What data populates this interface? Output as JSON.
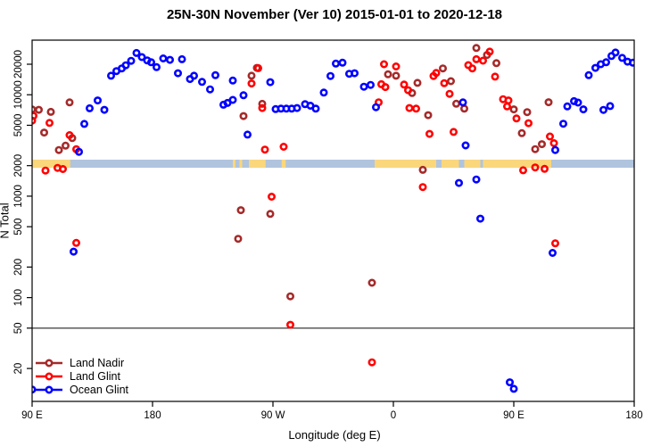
{
  "title": "25N-30N November (Ver 10)   2015-01-01 to 2020-12-18",
  "x_axis": {
    "label": "Longitude (deg E)",
    "ticks": [
      {
        "lon": 90,
        "label": "90 E"
      },
      {
        "lon": 180,
        "label": "180"
      },
      {
        "lon": 270,
        "label": "90 W"
      },
      {
        "lon": 360,
        "label": "0"
      },
      {
        "lon": 450,
        "label": "90 E"
      },
      {
        "lon": 540,
        "label": "180"
      }
    ],
    "domain": [
      90,
      540
    ]
  },
  "y_axis": {
    "label": "N Total",
    "ticks": [
      "20000",
      "10000",
      "5000",
      "2000",
      "1000",
      "500",
      "200",
      "100",
      "50",
      "20"
    ],
    "scale": "log",
    "range": [
      9,
      35000
    ]
  },
  "reference_line_n": 50,
  "legend": [
    {
      "label": "Land Nadir",
      "color": "#A52A2A"
    },
    {
      "label": "Land Glint",
      "color": "#FF0000"
    },
    {
      "label": "Ocean Glint",
      "color": "#0000FF"
    }
  ],
  "map_band": {
    "ocean_color": "#B0C4DE",
    "land_color": "#FBD77C",
    "n_range": [
      1905,
      2290
    ],
    "land_segments_lon": [
      [
        90,
        118.5
      ],
      [
        240,
        242
      ],
      [
        245,
        247
      ],
      [
        252,
        264.5
      ],
      [
        276.5,
        279.5
      ],
      [
        346,
        392
      ],
      [
        396,
        409
      ],
      [
        413,
        425
      ],
      [
        427,
        478
      ]
    ]
  },
  "chart_data": {
    "type": "scatter",
    "x_domain": [
      90,
      540
    ],
    "title": "25N-30N November (Ver 10)   2015-01-01 to 2020-12-18",
    "xlabel": "Longitude (deg E)",
    "ylabel": "N Total",
    "series": [
      {
        "name": "Land Nadir",
        "color": "#A52A2A",
        "points": [
          [
            90,
            7160
          ],
          [
            95,
            7100
          ],
          [
            104,
            6780
          ],
          [
            118,
            8400
          ],
          [
            99,
            4240
          ],
          [
            110,
            2850
          ],
          [
            115,
            3150
          ],
          [
            120,
            3740
          ],
          [
            248,
            6160
          ],
          [
            254,
            15400
          ],
          [
            258,
            18400
          ],
          [
            262,
            8130
          ],
          [
            246,
            728
          ],
          [
            268,
            669
          ],
          [
            244,
            380
          ],
          [
            283,
            103
          ],
          [
            344,
            140
          ],
          [
            356,
            15900
          ],
          [
            362,
            15400
          ],
          [
            374,
            10400
          ],
          [
            378,
            13100
          ],
          [
            386,
            6290
          ],
          [
            382,
            1820
          ],
          [
            397,
            18200
          ],
          [
            403,
            13600
          ],
          [
            407,
            8160
          ],
          [
            413,
            7290
          ],
          [
            422,
            28900
          ],
          [
            430,
            24700
          ],
          [
            437,
            20500
          ],
          [
            450,
            7180
          ],
          [
            460,
            6740
          ],
          [
            456,
            4180
          ],
          [
            476,
            8440
          ],
          [
            466,
            2910
          ],
          [
            471,
            3260
          ]
        ]
      },
      {
        "name": "Land Glint",
        "color": "#FF0000",
        "points": [
          [
            90,
            5560
          ],
          [
            91,
            6190
          ],
          [
            103,
            5280
          ],
          [
            118,
            4000
          ],
          [
            123,
            2900
          ],
          [
            100,
            1790
          ],
          [
            109,
            1900
          ],
          [
            113,
            1850
          ],
          [
            123,
            346
          ],
          [
            254,
            12900
          ],
          [
            259,
            18300
          ],
          [
            262,
            7400
          ],
          [
            264,
            2880
          ],
          [
            278,
            3070
          ],
          [
            269,
            988
          ],
          [
            283,
            54
          ],
          [
            344,
            23
          ],
          [
            349,
            8420
          ],
          [
            351,
            12700
          ],
          [
            353,
            20000
          ],
          [
            354,
            11900
          ],
          [
            362,
            19000
          ],
          [
            368,
            12600
          ],
          [
            371,
            11100
          ],
          [
            372,
            7400
          ],
          [
            377,
            7290
          ],
          [
            387,
            4110
          ],
          [
            390,
            15300
          ],
          [
            392,
            16400
          ],
          [
            398,
            13000
          ],
          [
            402,
            10200
          ],
          [
            405,
            4300
          ],
          [
            382,
            1230
          ],
          [
            416,
            19600
          ],
          [
            419,
            18200
          ],
          [
            422,
            22400
          ],
          [
            427,
            21700
          ],
          [
            432,
            26600
          ],
          [
            436,
            15100
          ],
          [
            442,
            9040
          ],
          [
            446,
            8780
          ],
          [
            445,
            7680
          ],
          [
            452,
            5840
          ],
          [
            461,
            5240
          ],
          [
            477,
            3880
          ],
          [
            480,
            3330
          ],
          [
            457,
            1800
          ],
          [
            466,
            1920
          ],
          [
            473,
            1860
          ],
          [
            481,
            343
          ]
        ]
      },
      {
        "name": "Ocean Glint",
        "color": "#0000FF",
        "points": [
          [
            149,
            15400
          ],
          [
            153,
            17100
          ],
          [
            157,
            18200
          ],
          [
            160,
            19500
          ],
          [
            164,
            21600
          ],
          [
            168,
            25800
          ],
          [
            172,
            23500
          ],
          [
            176,
            21800
          ],
          [
            179,
            20900
          ],
          [
            183,
            18700
          ],
          [
            188,
            22800
          ],
          [
            193,
            22100
          ],
          [
            199,
            16300
          ],
          [
            202,
            22400
          ],
          [
            208,
            14300
          ],
          [
            211,
            15400
          ],
          [
            217,
            13400
          ],
          [
            223,
            11300
          ],
          [
            227,
            15600
          ],
          [
            233,
            7980
          ],
          [
            236,
            8310
          ],
          [
            240,
            13800
          ],
          [
            240,
            8900
          ],
          [
            129,
            5160
          ],
          [
            133,
            7360
          ],
          [
            139,
            8780
          ],
          [
            144,
            7100
          ],
          [
            125,
            2740
          ],
          [
            121,
            284
          ],
          [
            90,
            12.4
          ],
          [
            248,
            9890
          ],
          [
            251,
            4050
          ],
          [
            268,
            13300
          ],
          [
            272,
            7220
          ],
          [
            276,
            7290
          ],
          [
            280,
            7290
          ],
          [
            284,
            7290
          ],
          [
            288,
            7400
          ],
          [
            294,
            8070
          ],
          [
            298,
            7800
          ],
          [
            302,
            7290
          ],
          [
            308,
            10500
          ],
          [
            313,
            15300
          ],
          [
            317,
            20300
          ],
          [
            322,
            20700
          ],
          [
            327,
            16100
          ],
          [
            331,
            16300
          ],
          [
            338,
            12000
          ],
          [
            343,
            12500
          ],
          [
            347,
            7540
          ],
          [
            409,
            1350
          ],
          [
            412,
            8400
          ],
          [
            414,
            3170
          ],
          [
            422,
            1460
          ],
          [
            425,
            600
          ],
          [
            447,
            14.6
          ],
          [
            450,
            12.6
          ],
          [
            479,
            276
          ],
          [
            481,
            2850
          ],
          [
            487,
            5180
          ],
          [
            490,
            7680
          ],
          [
            495,
            8650
          ],
          [
            498,
            8380
          ],
          [
            502,
            7180
          ],
          [
            517,
            7090
          ],
          [
            522,
            7740
          ],
          [
            506,
            15600
          ],
          [
            511,
            18400
          ],
          [
            515,
            20000
          ],
          [
            519,
            20900
          ],
          [
            523,
            24100
          ],
          [
            526,
            26100
          ],
          [
            531,
            23100
          ],
          [
            535,
            21200
          ],
          [
            539,
            20700
          ]
        ]
      }
    ]
  }
}
